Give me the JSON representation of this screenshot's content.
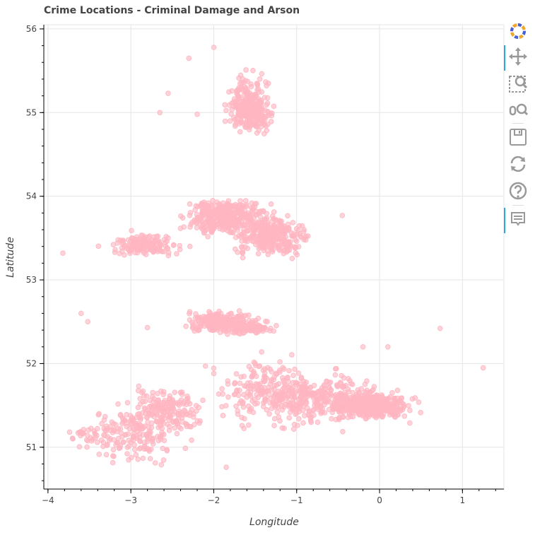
{
  "chart_data": {
    "type": "scatter",
    "title": "Crime Locations - Criminal Damage and Arson",
    "xlabel": "Longitude",
    "ylabel": "Latitude",
    "xlim": [
      -4.05,
      1.5
    ],
    "ylim": [
      50.5,
      56.05
    ],
    "x_ticks": [
      -4,
      -3,
      -2,
      -1,
      0,
      1
    ],
    "x_tick_labels": [
      "−4",
      "−3",
      "−2",
      "−1",
      "0",
      "1"
    ],
    "y_ticks": [
      51,
      52,
      53,
      54,
      55,
      56
    ],
    "y_tick_labels": [
      "51",
      "52",
      "53",
      "54",
      "55",
      "56"
    ],
    "grid": true,
    "point_color": "#ffb6c1",
    "clusters": [
      {
        "center": [
          -1.55,
          55.0
        ],
        "spread": [
          0.12,
          0.1
        ],
        "count": 240
      },
      {
        "center": [
          -1.6,
          55.25
        ],
        "spread": [
          0.12,
          0.12
        ],
        "count": 60
      },
      {
        "center": [
          -1.85,
          53.75
        ],
        "spread": [
          0.22,
          0.1
        ],
        "count": 380
      },
      {
        "center": [
          -1.3,
          53.52
        ],
        "spread": [
          0.2,
          0.1
        ],
        "count": 300
      },
      {
        "center": [
          -2.85,
          53.42
        ],
        "spread": [
          0.2,
          0.06
        ],
        "count": 150
      },
      {
        "center": [
          -1.9,
          52.5
        ],
        "spread": [
          0.2,
          0.06
        ],
        "count": 220
      },
      {
        "center": [
          -1.55,
          52.42
        ],
        "spread": [
          0.15,
          0.03
        ],
        "count": 80
      },
      {
        "center": [
          -0.1,
          51.5
        ],
        "spread": [
          0.2,
          0.07
        ],
        "count": 420
      },
      {
        "center": [
          -0.7,
          51.6
        ],
        "spread": [
          0.3,
          0.15
        ],
        "count": 260
      },
      {
        "center": [
          -1.35,
          51.65
        ],
        "spread": [
          0.25,
          0.18
        ],
        "count": 200
      },
      {
        "center": [
          -2.6,
          51.45
        ],
        "spread": [
          0.2,
          0.12
        ],
        "count": 180
      },
      {
        "center": [
          -2.95,
          51.15
        ],
        "spread": [
          0.25,
          0.15
        ],
        "count": 160
      },
      {
        "center": [
          -3.5,
          51.15
        ],
        "spread": [
          0.12,
          0.05
        ],
        "count": 30
      }
    ],
    "outliers": [
      [
        -3.82,
        53.32
      ],
      [
        -3.6,
        52.6
      ],
      [
        -3.52,
        52.5
      ],
      [
        -3.7,
        51.1
      ],
      [
        -2.8,
        52.43
      ],
      [
        -2.55,
        55.23
      ],
      [
        -2.0,
        55.78
      ],
      [
        -2.3,
        55.65
      ],
      [
        -2.65,
        55.0
      ],
      [
        -2.2,
        54.98
      ],
      [
        -1.85,
        50.76
      ],
      [
        -0.45,
        53.77
      ],
      [
        0.73,
        52.42
      ],
      [
        1.25,
        51.95
      ],
      [
        0.1,
        52.2
      ],
      [
        -0.2,
        52.2
      ],
      [
        -2.0,
        51.88
      ],
      [
        -2.1,
        51.97
      ]
    ]
  },
  "toolbar": {
    "tools": [
      {
        "name": "bokeh-logo-icon",
        "active": false
      },
      {
        "name": "pan-tool-icon",
        "active": true
      },
      {
        "name": "box-zoom-tool-icon",
        "active": false
      },
      {
        "name": "wheel-zoom-tool-icon",
        "active": false
      },
      {
        "name": "save-tool-icon",
        "active": false
      },
      {
        "name": "reset-tool-icon",
        "active": false
      },
      {
        "name": "help-tool-icon",
        "active": false
      },
      {
        "name": "hover-tool-icon",
        "active": true
      }
    ]
  }
}
